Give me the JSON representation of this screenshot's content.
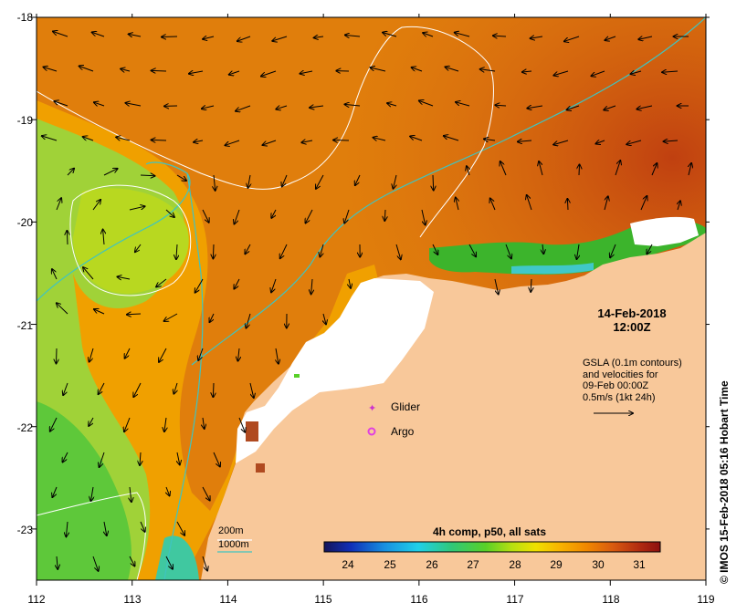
{
  "map": {
    "lon_ticks": [
      "112",
      "113",
      "114",
      "115",
      "116",
      "117",
      "118",
      "119"
    ],
    "lat_ticks": [
      "-18",
      "-19",
      "-20",
      "-21",
      "-22",
      "-23"
    ],
    "lon_range": [
      112,
      119
    ],
    "lat_range": [
      -23.5,
      -18
    ],
    "date_line1": "14-Feb-2018",
    "date_line2": "12:00Z",
    "gsla_text": "GSLA (0.1m contours)\nand velocities for\n09-Feb 00:00Z\n0.5m/s (1kt 24h)",
    "legend_glider": "Glider",
    "legend_argo": "Argo",
    "contour_200": "200m",
    "contour_1000": "1000m",
    "colorbar_title": "4h comp, p50, all sats",
    "colorbar_ticks": [
      "24",
      "25",
      "26",
      "27",
      "28",
      "29",
      "30",
      "31"
    ],
    "colorbar_range": [
      23.4,
      31.8
    ],
    "credit": "© IMOS 15-Feb-2018 05:16 Hobart Time",
    "colors": {
      "land": "#f8c89a",
      "cloud_mask": "#ffffff",
      "glider_marker": "#cc33cc",
      "argo_marker": "#e040e0",
      "isobath_1000m": "#3fc4c0",
      "isobath_200m": "#ffffff"
    },
    "colorbar_stops": [
      "#14145a",
      "#1030b8",
      "#1890e0",
      "#20d0e8",
      "#30c878",
      "#58d028",
      "#b8e010",
      "#f0e000",
      "#f8b400",
      "#f08800",
      "#d85a10",
      "#b02a10",
      "#8c1010"
    ]
  }
}
